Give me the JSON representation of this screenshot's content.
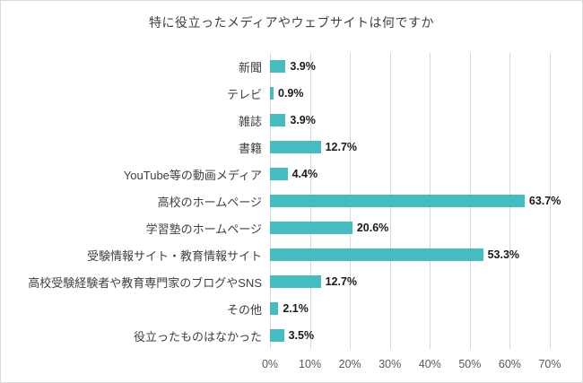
{
  "chart_data": {
    "type": "bar",
    "orientation": "horizontal",
    "title": "特に役立ったメディアやウェブサイトは何ですか",
    "categories": [
      "新聞",
      "テレビ",
      "雑誌",
      "書籍",
      "YouTube等の動画メディア",
      "高校のホームページ",
      "学習塾のホームページ",
      "受験情報サイト・教育情報サイト",
      "高校受験経験者や教育専門家のブログやSNS",
      "その他",
      "役立ったものはなかった"
    ],
    "values": [
      3.9,
      0.9,
      3.9,
      12.7,
      4.4,
      63.7,
      20.6,
      53.3,
      12.7,
      2.1,
      3.5
    ],
    "value_labels": [
      "3.9%",
      "0.9%",
      "3.9%",
      "12.7%",
      "4.4%",
      "63.7%",
      "20.6%",
      "53.3%",
      "12.7%",
      "2.1%",
      "3.5%"
    ],
    "x_ticks": [
      "0%",
      "10%",
      "20%",
      "30%",
      "40%",
      "50%",
      "60%",
      "70%"
    ],
    "xlim": [
      0,
      70
    ],
    "grid": true,
    "legend": "none",
    "bar_color": "#45bcc2",
    "grid_color": "#d9d9d9",
    "title_color": "#404040",
    "tick_color": "#595959"
  }
}
